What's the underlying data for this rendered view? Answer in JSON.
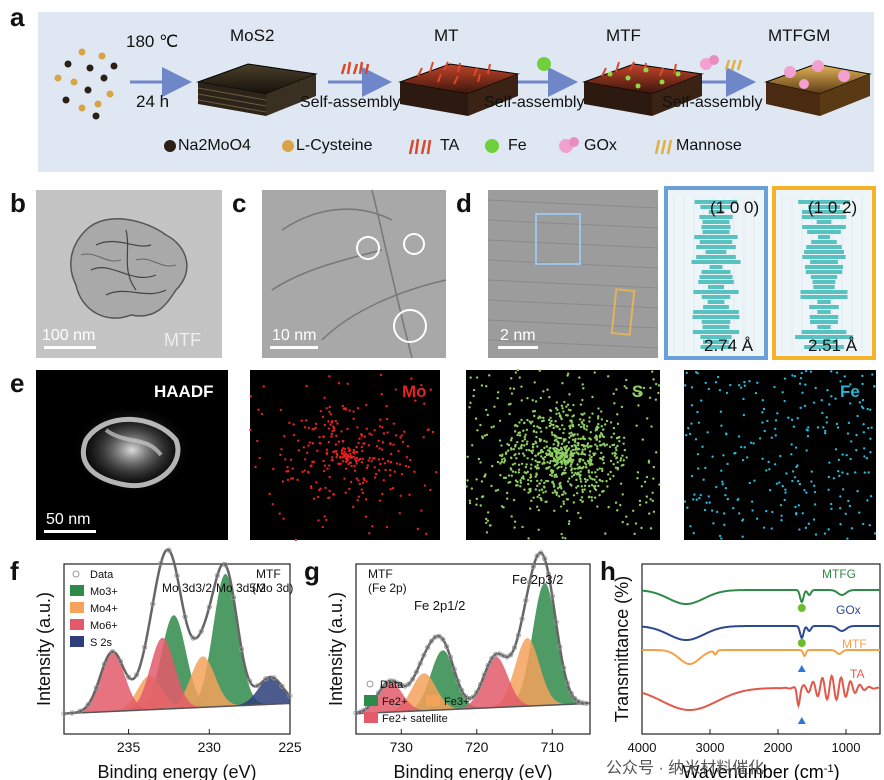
{
  "figure": {
    "panel_letters": [
      "a",
      "b",
      "c",
      "d",
      "e",
      "f",
      "g",
      "h"
    ],
    "schematic": {
      "condition_temp": "180 ℃",
      "condition_time": "24 h",
      "stages": [
        "MoS2",
        "MT",
        "MTF",
        "MTFGM"
      ],
      "steps": [
        "Self-assembly",
        "Self-assembly",
        "Self-assembly"
      ],
      "legend": [
        "Na2MoO4",
        "L-Cysteine",
        "TA",
        "Fe",
        "GOx",
        "Mannose"
      ],
      "colors": {
        "background": "#dfe8f2",
        "arrow": "#6f86c9"
      }
    },
    "tem": {
      "b_scale": "100 nm",
      "b_label": "MTF",
      "c_scale": "10 nm",
      "d_scale": "2 nm",
      "lattice_1_plane": "(1 0 0)",
      "lattice_1_spacing": "2.74 Å",
      "lattice_2_plane": "(1 0 2)",
      "lattice_2_spacing": "2.51 Å",
      "lattice_colors": {
        "blue": "#6a9fd8",
        "orange": "#f5b32a",
        "bars": "#58c2c0"
      }
    },
    "eds": {
      "labels": [
        "HAADF",
        "Mo",
        "S",
        "Fe"
      ],
      "scale": "50 nm",
      "colors": {
        "Mo": "#e52222",
        "S": "#8fcf64",
        "Fe": "#28b6d8"
      }
    }
  },
  "chart_data": [
    {
      "type": "line",
      "panel": "f",
      "title": "MTF (Mo 3d)",
      "xlabel": "Binding energy (eV)",
      "ylabel": "Intensity (a.u.)",
      "xlim": [
        239,
        225
      ],
      "xticks": [
        235,
        230,
        225
      ],
      "legend": [
        "Data",
        "Mo3+",
        "Mo4+",
        "Mo6+",
        "S 2s"
      ],
      "peak_labels": [
        "Mo 3d3/2",
        "Mo 3d5/2"
      ],
      "peaks": [
        {
          "name": "Mo3+",
          "center": 229.0,
          "height": 0.78,
          "color": "#2f8a4a"
        },
        {
          "name": "Mo3+",
          "center": 232.2,
          "height": 0.55,
          "color": "#2f8a4a"
        },
        {
          "name": "Mo4+",
          "center": 230.4,
          "height": 0.3,
          "color": "#f5a25a"
        },
        {
          "name": "Mo4+",
          "center": 233.7,
          "height": 0.2,
          "color": "#f5a25a"
        },
        {
          "name": "Mo6+",
          "center": 232.9,
          "height": 0.42,
          "color": "#e35a6a"
        },
        {
          "name": "Mo6+",
          "center": 236.0,
          "height": 0.35,
          "color": "#e35a6a"
        },
        {
          "name": "S 2s",
          "center": 226.2,
          "height": 0.16,
          "color": "#2d3e7a"
        }
      ]
    },
    {
      "type": "line",
      "panel": "g",
      "title": "MTF (Fe 2p)",
      "xlabel": "Binding energy (eV)",
      "ylabel": "Intensity (a.u.)",
      "xlim": [
        736,
        705
      ],
      "xticks": [
        730,
        720,
        710
      ],
      "legend": [
        "Data",
        "Fe2+",
        "Fe3+",
        "Fe2+ satellite"
      ],
      "peak_labels": [
        "Fe 2p1/2",
        "Fe 2p3/2"
      ],
      "peaks": [
        {
          "name": "Fe2+",
          "center": 711.0,
          "height": 0.72,
          "color": "#2f8a4a"
        },
        {
          "name": "Fe2+",
          "center": 724.5,
          "height": 0.35,
          "color": "#2f8a4a"
        },
        {
          "name": "Fe3+",
          "center": 713.3,
          "height": 0.4,
          "color": "#f5a25a"
        },
        {
          "name": "Fe3+",
          "center": 727.0,
          "height": 0.22,
          "color": "#f5a25a"
        },
        {
          "name": "Fe2+ satellite",
          "center": 717.5,
          "height": 0.3,
          "color": "#e35a6a"
        },
        {
          "name": "Fe2+ satellite",
          "center": 731.5,
          "height": 0.18,
          "color": "#e35a6a"
        }
      ]
    },
    {
      "type": "line",
      "panel": "h",
      "xlabel": "Wavenumber (cm-1)",
      "ylabel": "Transmittance (%)",
      "xlim": [
        4000,
        500
      ],
      "xticks": [
        4000,
        3000,
        2000,
        1000
      ],
      "series": [
        {
          "name": "MTFG",
          "color": "#2e8b47",
          "offset": 0
        },
        {
          "name": "GOx",
          "color": "#2c4891",
          "offset": 1
        },
        {
          "name": "MTF",
          "color": "#f5a14a",
          "offset": 2
        },
        {
          "name": "TA",
          "color": "#e3584a",
          "offset": 3
        }
      ]
    }
  ],
  "watermark": "公众号 · 纳米材料催化"
}
